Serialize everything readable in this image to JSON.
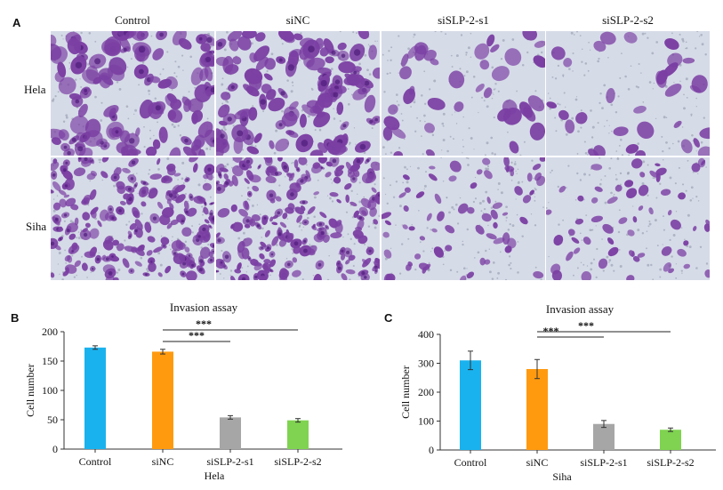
{
  "figure": {
    "panel_a_letter": "A",
    "panel_b_letter": "B",
    "panel_c_letter": "C",
    "columns": [
      "Control",
      "siNC",
      "siSLP-2-s1",
      "siSLP-2-s2"
    ],
    "rows": [
      "Hela",
      "Siha"
    ],
    "stain_color": "#7b3fa3",
    "background_color": "#d6dbe8",
    "cell_density": [
      [
        1.0,
        1.0,
        0.32,
        0.26
      ],
      [
        1.0,
        1.0,
        0.32,
        0.28
      ]
    ]
  },
  "chart_data": [
    {
      "type": "bar",
      "title": "Invasion assay",
      "xlabel": "Hela",
      "ylabel": "Cell number",
      "categories": [
        "Control",
        "siNC",
        "siSLP-2-s1",
        "siSLP-2-s2"
      ],
      "values": [
        173,
        166,
        54,
        49
      ],
      "errors": [
        3,
        4,
        3,
        3
      ],
      "colors": [
        "#1ab2ee",
        "#ff9a0f",
        "#a6a6a6",
        "#7fd350"
      ],
      "ylim": [
        0,
        200
      ],
      "yticks": [
        0,
        50,
        100,
        150,
        200
      ],
      "significance": [
        {
          "from": "siNC",
          "to": "siSLP-2-s1",
          "label": "***"
        },
        {
          "from": "siNC",
          "to": "siSLP-2-s2",
          "label": "***"
        }
      ]
    },
    {
      "type": "bar",
      "title": "Invasion assay",
      "xlabel": "Siha",
      "ylabel": "Cell number",
      "categories": [
        "Control",
        "siNC",
        "siSLP-2-s1",
        "siSLP-2-s2"
      ],
      "values": [
        310,
        280,
        90,
        70
      ],
      "errors": [
        32,
        33,
        12,
        6
      ],
      "colors": [
        "#1ab2ee",
        "#ff9a0f",
        "#a6a6a6",
        "#7fd350"
      ],
      "ylim": [
        0,
        400
      ],
      "yticks": [
        0,
        100,
        200,
        300,
        400
      ],
      "significance": [
        {
          "from": "siNC",
          "to": "siSLP-2-s1",
          "label": "***"
        },
        {
          "from": "siNC",
          "to": "siSLP-2-s2",
          "label": "***"
        }
      ]
    }
  ]
}
